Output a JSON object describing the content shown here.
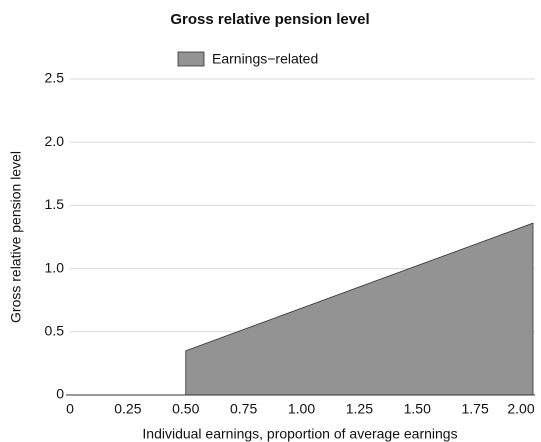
{
  "chart_data": {
    "type": "area",
    "title": "Gross relative pension level",
    "x_label": "Individual earnings, proportion of average earnings",
    "y_label": "Gross relative pension level",
    "x": [
      0,
      0.5,
      0.5,
      2.0
    ],
    "series": [
      {
        "name": "Earnings−related",
        "color": "#939393",
        "values": [
          0,
          0,
          0.35,
          1.36
        ]
      }
    ],
    "xlim": [
      0,
      2.0
    ],
    "xticks": [
      0,
      0.25,
      {
        "value": 0.5,
        "label": "0.50"
      },
      0.75,
      {
        "value": 1,
        "label": "1.00"
      },
      1.25,
      {
        "value": 1.5,
        "label": "1.50"
      },
      1.75,
      {
        "value": 2,
        "label": "2.00"
      }
    ],
    "ylim": [
      0,
      2.5
    ],
    "yticks": [
      0,
      0.5,
      {
        "value": 1,
        "label": "1.0"
      },
      1.5,
      {
        "value": 2,
        "label": "2.0"
      },
      2.5
    ],
    "grid": true,
    "legend": "top"
  }
}
